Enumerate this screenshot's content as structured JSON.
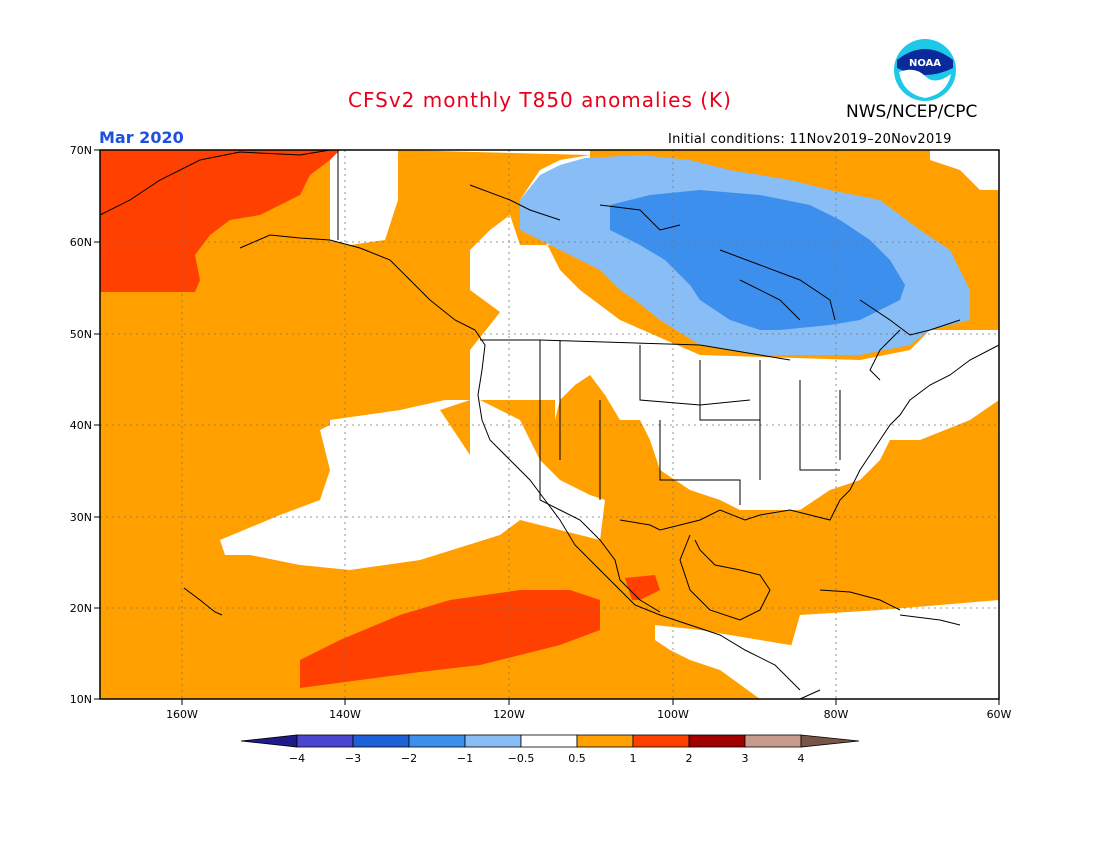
{
  "header": {
    "title": "CFSv2 monthly T850 anomalies (K)",
    "organization": "NWS/NCEP/CPC",
    "period": "Mar 2020",
    "initial_conditions": "Initial conditions: 11Nov2019–20Nov2019",
    "logo_text": "NOAA"
  },
  "axes": {
    "lat_labels": [
      "70N",
      "60N",
      "50N",
      "40N",
      "30N",
      "20N",
      "10N"
    ],
    "lon_labels": [
      "160W",
      "140W",
      "120W",
      "100W",
      "80W",
      "60W"
    ]
  },
  "legend": {
    "tick_labels": [
      "−4",
      "−3",
      "−2",
      "−1",
      "−0.5",
      "0.5",
      "1",
      "2",
      "3",
      "4"
    ],
    "colors": {
      "lt_m4": "#1f1a8c",
      "m4_m3": "#4a46d0",
      "m3_m2": "#1e60d8",
      "m2_m1": "#3d8fee",
      "m1_m05": "#89bdf5",
      "neutral": "#ffffff",
      "p05_p1": "#ffa000",
      "p1_p2": "#ff4000",
      "p2_p3": "#a00000",
      "p3_p4": "#c79c8f",
      "gt_p4": "#7a5446"
    }
  }
}
